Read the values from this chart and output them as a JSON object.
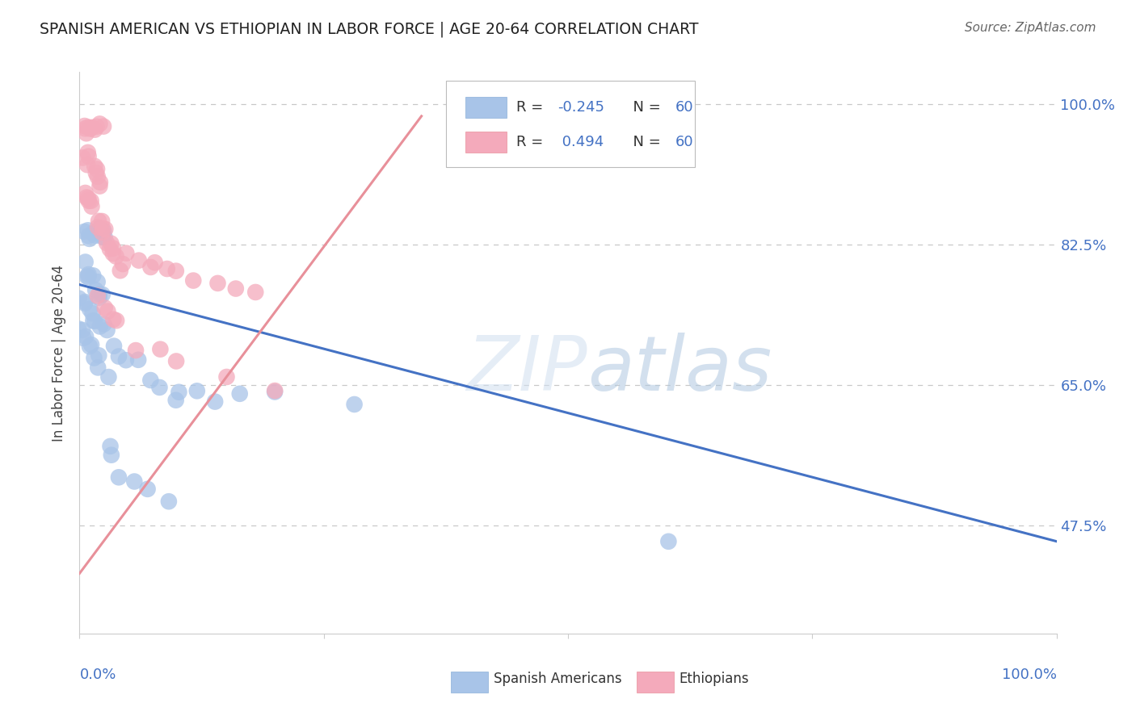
{
  "title": "SPANISH AMERICAN VS ETHIOPIAN IN LABOR FORCE | AGE 20-64 CORRELATION CHART",
  "source": "Source: ZipAtlas.com",
  "ylabel": "In Labor Force | Age 20-64",
  "r_blue": -0.245,
  "r_pink": 0.494,
  "n_blue": 60,
  "n_pink": 60,
  "y_ticks": [
    0.475,
    0.65,
    0.825,
    1.0
  ],
  "y_tick_labels": [
    "47.5%",
    "65.0%",
    "82.5%",
    "100.0%"
  ],
  "x_lim": [
    0.0,
    1.0
  ],
  "y_lim": [
    0.34,
    1.04
  ],
  "blue_scatter_color": "#a8c4e8",
  "pink_scatter_color": "#f4aabb",
  "blue_line_color": "#4472c4",
  "pink_line_color": "#e8909a",
  "legend_label_blue": "Spanish Americans",
  "legend_label_pink": "Ethiopians",
  "watermark": "ZIPatlas",
  "blue_trend_x0": 0.0,
  "blue_trend_y0": 0.775,
  "blue_trend_x1": 1.0,
  "blue_trend_y1": 0.455,
  "pink_trend_x0": 0.0,
  "pink_trend_y0": 0.415,
  "pink_trend_x1": 0.35,
  "pink_trend_y1": 0.985,
  "blue_x": [
    0.005,
    0.008,
    0.01,
    0.012,
    0.015,
    0.018,
    0.02,
    0.022,
    0.025,
    0.027,
    0.005,
    0.007,
    0.009,
    0.011,
    0.014,
    0.017,
    0.019,
    0.021,
    0.024,
    0.026,
    0.003,
    0.006,
    0.008,
    0.01,
    0.013,
    0.016,
    0.019,
    0.022,
    0.025,
    0.028,
    0.002,
    0.004,
    0.006,
    0.008,
    0.01,
    0.012,
    0.015,
    0.018,
    0.02,
    0.03,
    0.035,
    0.04,
    0.05,
    0.06,
    0.07,
    0.085,
    0.1,
    0.12,
    0.14,
    0.16,
    0.03,
    0.035,
    0.04,
    0.055,
    0.07,
    0.09,
    0.2,
    0.28,
    0.6,
    0.1
  ],
  "blue_y": [
    0.84,
    0.845,
    0.835,
    0.838,
    0.842,
    0.837,
    0.84,
    0.836,
    0.841,
    0.838,
    0.8,
    0.795,
    0.79,
    0.785,
    0.78,
    0.775,
    0.77,
    0.765,
    0.76,
    0.755,
    0.76,
    0.755,
    0.75,
    0.745,
    0.74,
    0.735,
    0.73,
    0.725,
    0.72,
    0.715,
    0.72,
    0.715,
    0.71,
    0.705,
    0.7,
    0.695,
    0.69,
    0.685,
    0.68,
    0.67,
    0.7,
    0.69,
    0.68,
    0.67,
    0.66,
    0.65,
    0.64,
    0.64,
    0.63,
    0.64,
    0.57,
    0.56,
    0.54,
    0.53,
    0.52,
    0.51,
    0.64,
    0.63,
    0.45,
    0.63
  ],
  "pink_x": [
    0.005,
    0.007,
    0.009,
    0.011,
    0.013,
    0.015,
    0.017,
    0.019,
    0.021,
    0.023,
    0.005,
    0.007,
    0.009,
    0.011,
    0.013,
    0.015,
    0.017,
    0.019,
    0.021,
    0.023,
    0.005,
    0.007,
    0.009,
    0.011,
    0.013,
    0.015,
    0.017,
    0.019,
    0.021,
    0.023,
    0.025,
    0.027,
    0.029,
    0.031,
    0.033,
    0.035,
    0.037,
    0.039,
    0.041,
    0.043,
    0.05,
    0.06,
    0.07,
    0.08,
    0.09,
    0.1,
    0.12,
    0.14,
    0.16,
    0.18,
    0.02,
    0.025,
    0.03,
    0.035,
    0.04,
    0.06,
    0.08,
    0.1,
    0.15,
    0.2
  ],
  "pink_y": [
    0.975,
    0.972,
    0.968,
    0.965,
    0.97,
    0.968,
    0.965,
    0.972,
    0.97,
    0.975,
    0.94,
    0.935,
    0.93,
    0.925,
    0.92,
    0.915,
    0.91,
    0.905,
    0.9,
    0.895,
    0.89,
    0.885,
    0.88,
    0.875,
    0.87,
    0.865,
    0.86,
    0.855,
    0.85,
    0.845,
    0.845,
    0.84,
    0.835,
    0.83,
    0.825,
    0.82,
    0.815,
    0.81,
    0.805,
    0.8,
    0.815,
    0.81,
    0.805,
    0.8,
    0.795,
    0.79,
    0.785,
    0.78,
    0.775,
    0.77,
    0.76,
    0.75,
    0.74,
    0.73,
    0.72,
    0.7,
    0.69,
    0.68,
    0.66,
    0.65
  ]
}
